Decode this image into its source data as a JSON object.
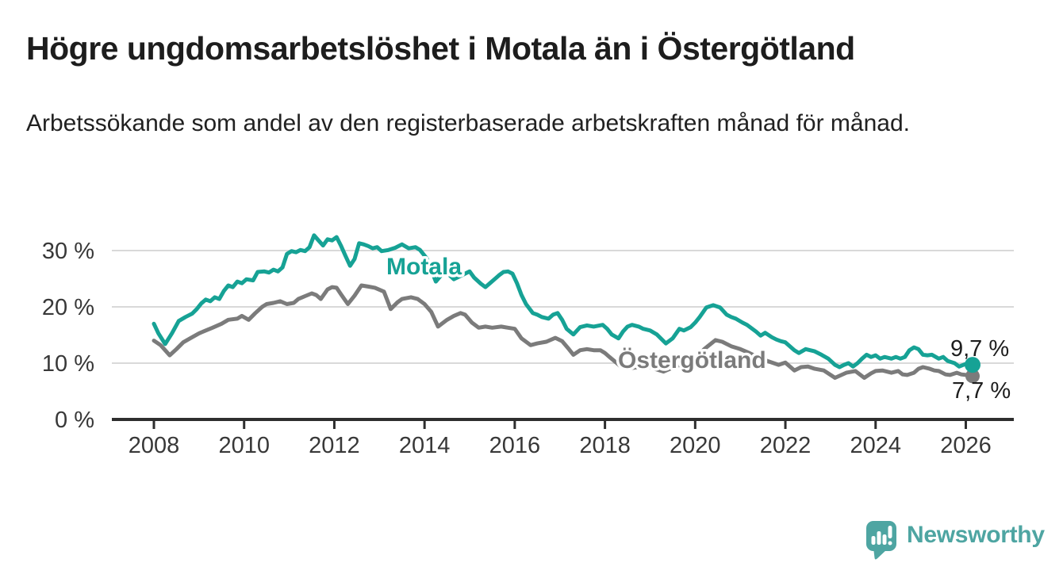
{
  "chart_data": {
    "type": "line",
    "title": "Högre ungdomsarbetslöshet i Motala än i Östergötland",
    "subtitle": "Arbetssökande som andel av den registerbaserade arbetskraften månad för månad.",
    "xlabel": "",
    "ylabel": "",
    "x_range": [
      2008,
      2026.15
    ],
    "ylim": [
      0,
      34
    ],
    "grid": "horizontal",
    "legend_position": "inline-labels",
    "unit": "%",
    "yticks": [
      {
        "value": 0,
        "label": "0 %"
      },
      {
        "value": 10,
        "label": "10 %"
      },
      {
        "value": 20,
        "label": "20 %"
      },
      {
        "value": 30,
        "label": "30 %"
      }
    ],
    "xticks": [
      {
        "value": 2008,
        "label": "2008"
      },
      {
        "value": 2010,
        "label": "2010"
      },
      {
        "value": 2012,
        "label": "2012"
      },
      {
        "value": 2014,
        "label": "2014"
      },
      {
        "value": 2016,
        "label": "2016"
      },
      {
        "value": 2018,
        "label": "2018"
      },
      {
        "value": 2020,
        "label": "2020"
      },
      {
        "value": 2022,
        "label": "2022"
      },
      {
        "value": 2024,
        "label": "2024"
      },
      {
        "value": 2026,
        "label": "2026"
      }
    ],
    "series": [
      {
        "name": "Motala",
        "color": "#16a295",
        "end_label": "9,7 %",
        "end_value": 9.7,
        "points": [
          [
            2008.0,
            17.0
          ],
          [
            2008.1,
            15.3
          ],
          [
            2008.25,
            13.4
          ],
          [
            2008.4,
            15.3
          ],
          [
            2008.55,
            17.5
          ],
          [
            2008.7,
            18.2
          ],
          [
            2008.85,
            18.8
          ],
          [
            2008.95,
            19.6
          ],
          [
            2009.05,
            20.6
          ],
          [
            2009.15,
            21.3
          ],
          [
            2009.25,
            21.0
          ],
          [
            2009.35,
            21.7
          ],
          [
            2009.45,
            21.4
          ],
          [
            2009.55,
            22.8
          ],
          [
            2009.65,
            23.8
          ],
          [
            2009.75,
            23.5
          ],
          [
            2009.85,
            24.5
          ],
          [
            2009.95,
            24.2
          ],
          [
            2010.05,
            24.9
          ],
          [
            2010.2,
            24.7
          ],
          [
            2010.3,
            26.2
          ],
          [
            2010.45,
            26.3
          ],
          [
            2010.55,
            26.1
          ],
          [
            2010.65,
            26.6
          ],
          [
            2010.75,
            26.3
          ],
          [
            2010.85,
            27.0
          ],
          [
            2010.95,
            29.4
          ],
          [
            2011.05,
            29.9
          ],
          [
            2011.15,
            29.7
          ],
          [
            2011.25,
            30.1
          ],
          [
            2011.35,
            29.9
          ],
          [
            2011.45,
            30.6
          ],
          [
            2011.55,
            32.7
          ],
          [
            2011.65,
            31.8
          ],
          [
            2011.75,
            30.9
          ],
          [
            2011.85,
            32.0
          ],
          [
            2011.95,
            31.8
          ],
          [
            2012.05,
            32.4
          ],
          [
            2012.15,
            30.8
          ],
          [
            2012.25,
            29.0
          ],
          [
            2012.35,
            27.3
          ],
          [
            2012.45,
            28.5
          ],
          [
            2012.55,
            31.3
          ],
          [
            2012.65,
            31.1
          ],
          [
            2012.75,
            30.8
          ],
          [
            2012.85,
            30.4
          ],
          [
            2012.95,
            30.6
          ],
          [
            2013.05,
            29.9
          ],
          [
            2013.2,
            30.1
          ],
          [
            2013.35,
            30.5
          ],
          [
            2013.5,
            31.1
          ],
          [
            2013.65,
            30.4
          ],
          [
            2013.8,
            30.6
          ],
          [
            2013.9,
            30.1
          ],
          [
            2014.05,
            28.6
          ],
          [
            2014.25,
            24.5
          ],
          [
            2014.45,
            26.4
          ],
          [
            2014.65,
            24.9
          ],
          [
            2014.85,
            25.7
          ],
          [
            2015.0,
            26.3
          ],
          [
            2015.1,
            25.2
          ],
          [
            2015.25,
            24.1
          ],
          [
            2015.35,
            23.5
          ],
          [
            2015.45,
            24.2
          ],
          [
            2015.55,
            24.9
          ],
          [
            2015.65,
            25.6
          ],
          [
            2015.75,
            26.2
          ],
          [
            2015.85,
            26.3
          ],
          [
            2015.95,
            25.9
          ],
          [
            2016.05,
            24.2
          ],
          [
            2016.15,
            22.1
          ],
          [
            2016.25,
            20.5
          ],
          [
            2016.4,
            18.9
          ],
          [
            2016.5,
            18.6
          ],
          [
            2016.6,
            18.2
          ],
          [
            2016.75,
            17.9
          ],
          [
            2016.85,
            18.6
          ],
          [
            2016.95,
            18.9
          ],
          [
            2017.05,
            17.7
          ],
          [
            2017.15,
            16.1
          ],
          [
            2017.3,
            15.1
          ],
          [
            2017.45,
            16.4
          ],
          [
            2017.6,
            16.7
          ],
          [
            2017.75,
            16.5
          ],
          [
            2017.95,
            16.8
          ],
          [
            2018.05,
            16.1
          ],
          [
            2018.15,
            15.1
          ],
          [
            2018.3,
            14.4
          ],
          [
            2018.4,
            15.6
          ],
          [
            2018.5,
            16.5
          ],
          [
            2018.6,
            16.8
          ],
          [
            2018.75,
            16.5
          ],
          [
            2018.85,
            16.1
          ],
          [
            2019.0,
            15.8
          ],
          [
            2019.15,
            15.1
          ],
          [
            2019.35,
            13.5
          ],
          [
            2019.5,
            14.4
          ],
          [
            2019.65,
            16.1
          ],
          [
            2019.75,
            15.8
          ],
          [
            2019.9,
            16.4
          ],
          [
            2020.0,
            17.2
          ],
          [
            2020.1,
            18.2
          ],
          [
            2020.25,
            19.9
          ],
          [
            2020.4,
            20.3
          ],
          [
            2020.55,
            19.9
          ],
          [
            2020.7,
            18.6
          ],
          [
            2020.8,
            18.2
          ],
          [
            2020.9,
            17.9
          ],
          [
            2021.05,
            17.2
          ],
          [
            2021.15,
            16.8
          ],
          [
            2021.35,
            15.6
          ],
          [
            2021.45,
            14.9
          ],
          [
            2021.55,
            15.4
          ],
          [
            2021.7,
            14.6
          ],
          [
            2021.8,
            14.2
          ],
          [
            2021.9,
            13.9
          ],
          [
            2022.0,
            13.7
          ],
          [
            2022.2,
            12.3
          ],
          [
            2022.3,
            11.8
          ],
          [
            2022.45,
            12.5
          ],
          [
            2022.55,
            12.3
          ],
          [
            2022.65,
            12.1
          ],
          [
            2022.8,
            11.5
          ],
          [
            2022.95,
            10.8
          ],
          [
            2023.1,
            9.7
          ],
          [
            2023.2,
            9.3
          ],
          [
            2023.3,
            9.7
          ],
          [
            2023.4,
            10.0
          ],
          [
            2023.5,
            9.4
          ],
          [
            2023.6,
            10.0
          ],
          [
            2023.7,
            10.8
          ],
          [
            2023.8,
            11.5
          ],
          [
            2023.9,
            11.1
          ],
          [
            2024.0,
            11.4
          ],
          [
            2024.1,
            10.8
          ],
          [
            2024.2,
            11.1
          ],
          [
            2024.35,
            10.8
          ],
          [
            2024.45,
            11.1
          ],
          [
            2024.55,
            10.8
          ],
          [
            2024.65,
            11.1
          ],
          [
            2024.75,
            12.3
          ],
          [
            2024.85,
            12.8
          ],
          [
            2024.95,
            12.5
          ],
          [
            2025.05,
            11.5
          ],
          [
            2025.15,
            11.4
          ],
          [
            2025.25,
            11.5
          ],
          [
            2025.4,
            10.8
          ],
          [
            2025.5,
            11.1
          ],
          [
            2025.6,
            10.4
          ],
          [
            2025.75,
            10.0
          ],
          [
            2025.85,
            9.4
          ],
          [
            2025.95,
            9.7
          ],
          [
            2026.05,
            10.0
          ],
          [
            2026.15,
            9.7
          ]
        ]
      },
      {
        "name": "Östergötland",
        "color": "#7b7b7b",
        "end_label": "7,7 %",
        "end_value": 7.7,
        "points": [
          [
            2008.0,
            14.0
          ],
          [
            2008.15,
            13.2
          ],
          [
            2008.35,
            11.4
          ],
          [
            2008.5,
            12.5
          ],
          [
            2008.65,
            13.7
          ],
          [
            2008.8,
            14.4
          ],
          [
            2009.0,
            15.3
          ],
          [
            2009.15,
            15.8
          ],
          [
            2009.3,
            16.3
          ],
          [
            2009.5,
            17.0
          ],
          [
            2009.65,
            17.7
          ],
          [
            2009.85,
            17.9
          ],
          [
            2009.95,
            18.4
          ],
          [
            2010.1,
            17.7
          ],
          [
            2010.25,
            18.9
          ],
          [
            2010.4,
            20.0
          ],
          [
            2010.5,
            20.5
          ],
          [
            2010.65,
            20.7
          ],
          [
            2010.8,
            21.0
          ],
          [
            2010.95,
            20.5
          ],
          [
            2011.1,
            20.7
          ],
          [
            2011.2,
            21.4
          ],
          [
            2011.35,
            21.9
          ],
          [
            2011.5,
            22.4
          ],
          [
            2011.6,
            22.1
          ],
          [
            2011.7,
            21.4
          ],
          [
            2011.85,
            23.1
          ],
          [
            2011.95,
            23.5
          ],
          [
            2012.05,
            23.4
          ],
          [
            2012.15,
            22.2
          ],
          [
            2012.3,
            20.5
          ],
          [
            2012.45,
            22.0
          ],
          [
            2012.6,
            23.8
          ],
          [
            2012.75,
            23.6
          ],
          [
            2012.9,
            23.4
          ],
          [
            2013.1,
            22.7
          ],
          [
            2013.25,
            19.6
          ],
          [
            2013.4,
            20.8
          ],
          [
            2013.5,
            21.4
          ],
          [
            2013.7,
            21.7
          ],
          [
            2013.85,
            21.4
          ],
          [
            2014.0,
            20.5
          ],
          [
            2014.15,
            19.1
          ],
          [
            2014.3,
            16.5
          ],
          [
            2014.5,
            17.7
          ],
          [
            2014.65,
            18.4
          ],
          [
            2014.8,
            18.9
          ],
          [
            2014.9,
            18.6
          ],
          [
            2015.05,
            17.2
          ],
          [
            2015.2,
            16.3
          ],
          [
            2015.35,
            16.5
          ],
          [
            2015.5,
            16.3
          ],
          [
            2015.7,
            16.5
          ],
          [
            2015.85,
            16.3
          ],
          [
            2016.0,
            16.1
          ],
          [
            2016.15,
            14.4
          ],
          [
            2016.35,
            13.2
          ],
          [
            2016.5,
            13.5
          ],
          [
            2016.7,
            13.8
          ],
          [
            2016.9,
            14.5
          ],
          [
            2017.05,
            13.9
          ],
          [
            2017.2,
            12.5
          ],
          [
            2017.3,
            11.5
          ],
          [
            2017.45,
            12.3
          ],
          [
            2017.6,
            12.5
          ],
          [
            2017.75,
            12.3
          ],
          [
            2017.9,
            12.3
          ],
          [
            2018.0,
            11.8
          ],
          [
            2018.1,
            11.1
          ],
          [
            2018.25,
            10.1
          ],
          [
            2018.35,
            9.4
          ],
          [
            2018.55,
            9.1
          ],
          [
            2018.75,
            9.3
          ],
          [
            2018.95,
            9.5
          ],
          [
            2019.1,
            9.0
          ],
          [
            2019.3,
            8.5
          ],
          [
            2019.5,
            9.2
          ],
          [
            2019.7,
            9.8
          ],
          [
            2019.85,
            10.2
          ],
          [
            2020.0,
            10.8
          ],
          [
            2020.2,
            12.5
          ],
          [
            2020.45,
            14.1
          ],
          [
            2020.6,
            13.8
          ],
          [
            2020.8,
            13.0
          ],
          [
            2021.0,
            12.5
          ],
          [
            2021.2,
            11.8
          ],
          [
            2021.4,
            11.0
          ],
          [
            2021.6,
            10.4
          ],
          [
            2021.85,
            9.7
          ],
          [
            2022.0,
            10.1
          ],
          [
            2022.2,
            8.7
          ],
          [
            2022.35,
            9.3
          ],
          [
            2022.5,
            9.4
          ],
          [
            2022.65,
            9.0
          ],
          [
            2022.85,
            8.7
          ],
          [
            2023.1,
            7.4
          ],
          [
            2023.35,
            8.3
          ],
          [
            2023.55,
            8.6
          ],
          [
            2023.65,
            8.0
          ],
          [
            2023.75,
            7.4
          ],
          [
            2023.9,
            8.2
          ],
          [
            2024.0,
            8.6
          ],
          [
            2024.15,
            8.7
          ],
          [
            2024.35,
            8.3
          ],
          [
            2024.5,
            8.6
          ],
          [
            2024.6,
            8.0
          ],
          [
            2024.7,
            7.9
          ],
          [
            2024.85,
            8.3
          ],
          [
            2024.95,
            9.0
          ],
          [
            2025.05,
            9.3
          ],
          [
            2025.2,
            9.0
          ],
          [
            2025.3,
            8.7
          ],
          [
            2025.4,
            8.6
          ],
          [
            2025.55,
            8.0
          ],
          [
            2025.65,
            7.9
          ],
          [
            2025.8,
            8.3
          ],
          [
            2025.9,
            8.0
          ],
          [
            2026.0,
            7.9
          ],
          [
            2026.15,
            7.7
          ]
        ]
      }
    ]
  },
  "footer": {
    "logo_text": "Newsworthy",
    "logo_color": "#4ea5a2"
  }
}
